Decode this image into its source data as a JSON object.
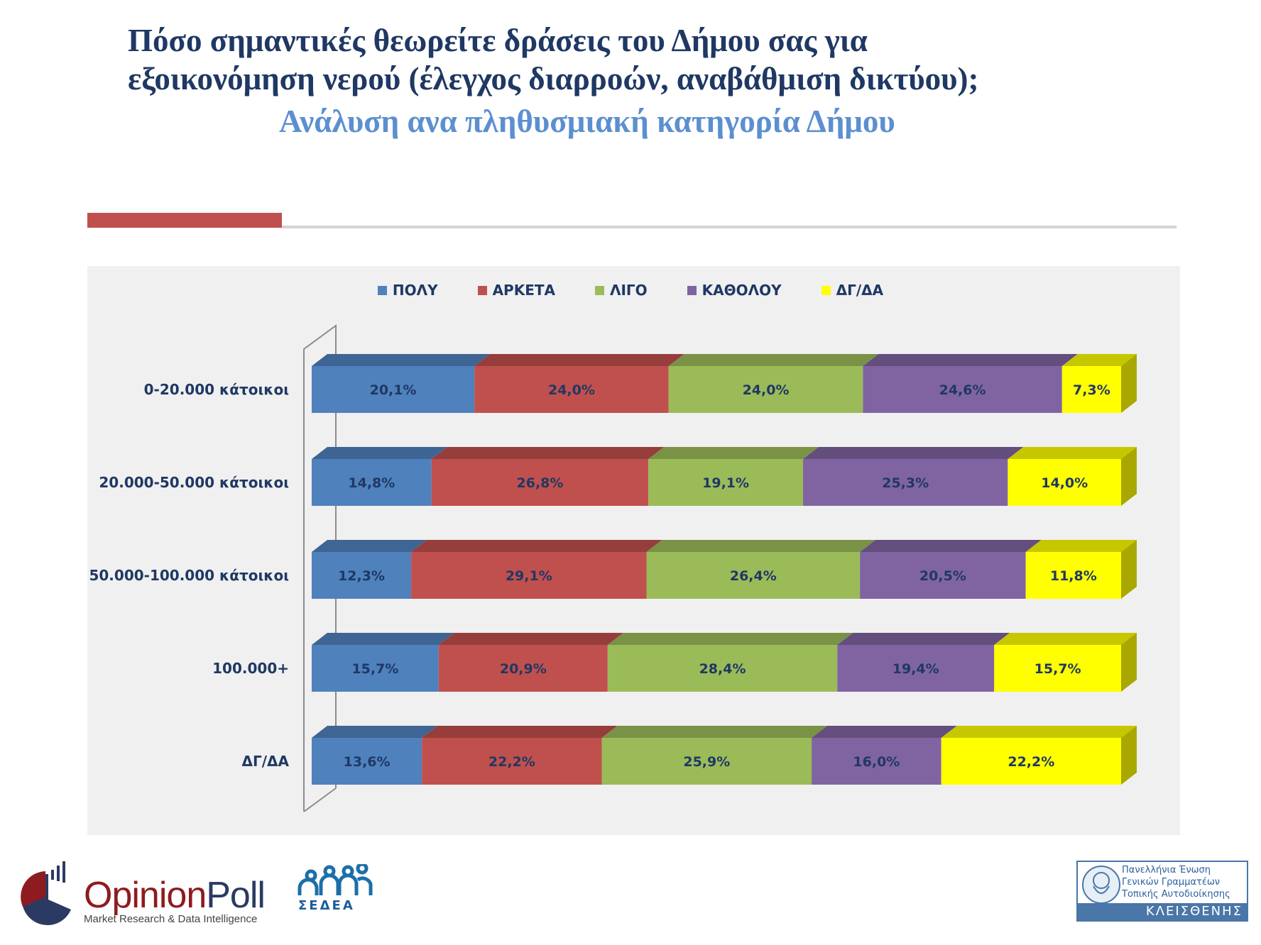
{
  "header": {
    "title_line1": "Πόσο σημαντικές θεωρείτε δράσεις του Δήμου σας για",
    "title_line2": "εξοικονόμηση νερού (έλεγχος διαρροών, αναβάθμιση δικτύου);",
    "subtitle": "Ανάλυση ανα πληθυσμιακή κατηγορία Δήμου"
  },
  "chart_data": {
    "type": "bar",
    "orientation": "horizontal",
    "stacked": "100%",
    "style": "3d",
    "title": "Πόσο σημαντικές θεωρείτε δράσεις του Δήμου σας για εξοικονόμηση νερού (έλεγχος διαρροών, αναβάθμιση δικτύου); Ανάλυση ανα πληθυσμιακή κατηγορία Δήμου",
    "xlabel": "",
    "ylabel": "",
    "legend_position": "top",
    "grid": false,
    "xlim": [
      0,
      100
    ],
    "categories": [
      "0-20.000 κάτοικοι",
      "20.000-50.000 κάτοικοι",
      "50.000-100.000 κάτοικοι",
      "100.000+",
      "ΔΓ/ΔΑ"
    ],
    "series": [
      {
        "name": "ΠΟΛΥ",
        "color": "#4F81BD",
        "values": [
          20.1,
          14.8,
          12.3,
          15.7,
          13.6
        ],
        "labels": [
          "20,1%",
          "14,8%",
          "12,3%",
          "15,7%",
          "13,6%"
        ]
      },
      {
        "name": "ΑΡΚΕΤΑ",
        "color": "#C0504D",
        "values": [
          24.0,
          26.8,
          29.1,
          20.9,
          22.2
        ],
        "labels": [
          "24,0%",
          "26,8%",
          "29,1%",
          "20,9%",
          "22,2%"
        ]
      },
      {
        "name": "ΛΙΓΟ",
        "color": "#9BBB59",
        "values": [
          24.0,
          19.1,
          26.4,
          28.4,
          25.9
        ],
        "labels": [
          "24,0%",
          "19,1%",
          "26,4%",
          "28,4%",
          "25,9%"
        ]
      },
      {
        "name": "ΚΑΘΟΛΟΥ",
        "color": "#8064A2",
        "values": [
          24.6,
          25.3,
          20.5,
          19.4,
          16.0
        ],
        "labels": [
          "24,6%",
          "25,3%",
          "20,5%",
          "19,4%",
          "16,0%"
        ]
      },
      {
        "name": "ΔΓ/ΔΑ",
        "color": "#FFFF00",
        "values": [
          7.3,
          14.0,
          11.8,
          15.7,
          22.2
        ],
        "labels": [
          "7,3%",
          "14,0%",
          "11,8%",
          "15,7%",
          "22,2%"
        ]
      }
    ]
  },
  "footer": {
    "opinionpoll_name_a": "Opinion",
    "opinionpoll_name_b": "Poll",
    "opinionpoll_tagline": "Market Research & Data Intelligence",
    "sedea_name": "ΣΕΔΕΑ",
    "kleisthenis_line1": "Πανελλήνια Ένωση",
    "kleisthenis_line2": "Γενικών Γραμματέων",
    "kleisthenis_line3": "Τοπικής Αυτοδιοίκησης",
    "kleisthenis_name": "ΚΛΕΙΣΘΕΝΗΣ"
  }
}
